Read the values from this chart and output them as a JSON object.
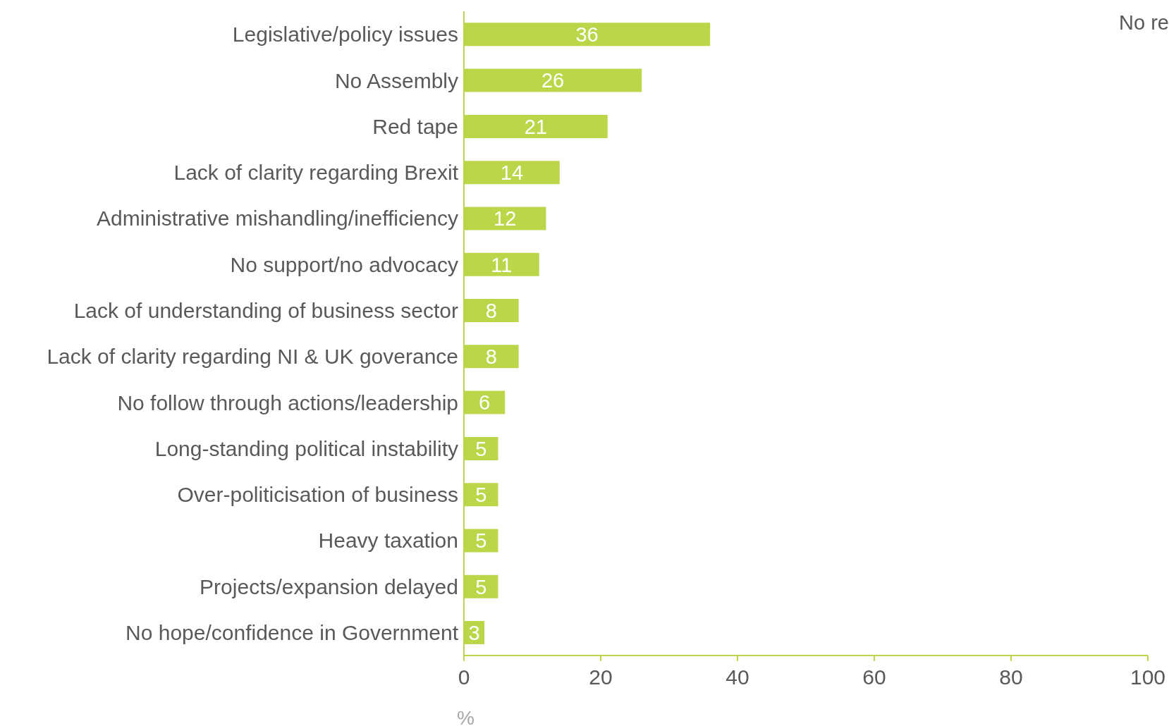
{
  "chart_data": {
    "type": "bar",
    "orientation": "horizontal",
    "xlabel": "%",
    "categories": [
      "Legislative/policy issues",
      "No Assembly",
      "Red tape",
      "Lack of clarity regarding Brexit ",
      "Administrative mishandling/inefficiency",
      "No support/no advocacy",
      "Lack of understanding of business sector",
      "Lack of clarity regarding NI & UK goverance",
      "No follow through actions/leadership",
      "Long-standing political instability",
      "Over-politicisation of business",
      "Heavy taxation ",
      "Projects/expansion delayed",
      "No hope/confidence in Government"
    ],
    "values": [
      36,
      26,
      21,
      14,
      12,
      11,
      8,
      8,
      6,
      5,
      5,
      5,
      5,
      3
    ],
    "color": "#bcd64a",
    "xlim": [
      0,
      100
    ],
    "xticks": [
      0,
      20,
      40,
      60,
      80,
      100
    ],
    "data_labels": true,
    "annotations": [
      "No re"
    ]
  }
}
